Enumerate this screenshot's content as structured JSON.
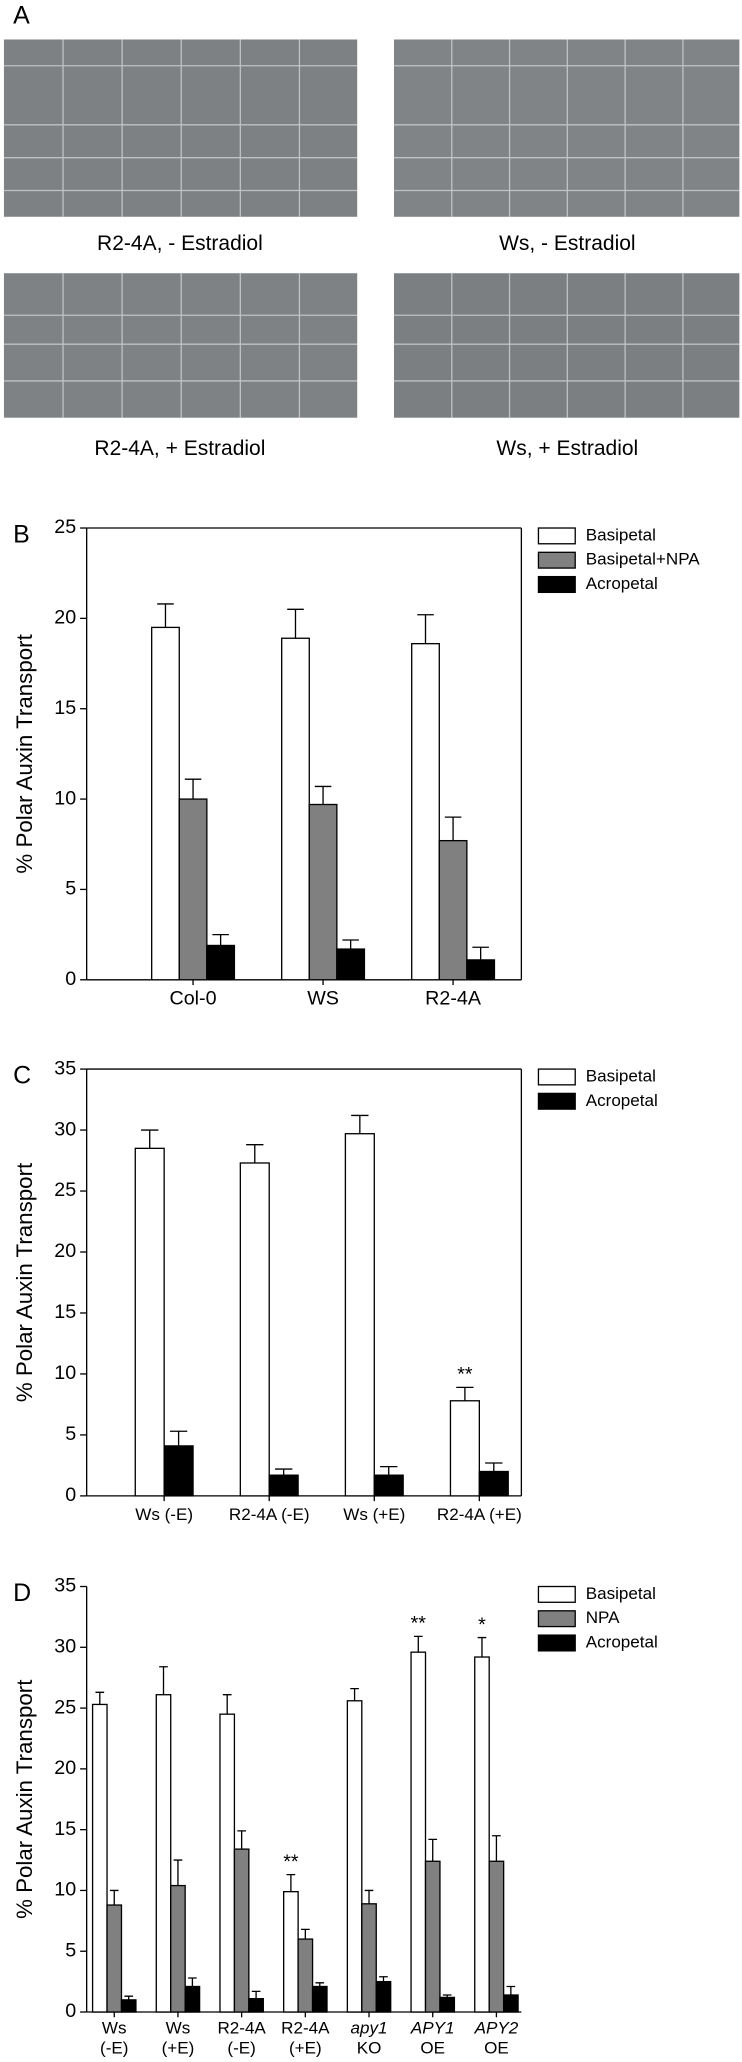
{
  "panel_a": {
    "label": "A",
    "captions": [
      "R2-4A, - Estradiol",
      "Ws, - Estradiol",
      "R2-4A, + Estradiol",
      "Ws, + Estradiol"
    ]
  },
  "chart_data": [
    {
      "type": "bar",
      "label": "B",
      "ylabel": "% Polar Auxin Transport",
      "categories": [
        "Col-0",
        "WS",
        "R2-4A"
      ],
      "series": [
        {
          "name": "Basipetal",
          "color": "#ffffff",
          "values": [
            19.5,
            18.9,
            18.6
          ],
          "errors": [
            1.3,
            1.6,
            1.6
          ]
        },
        {
          "name": "Basipetal+NPA",
          "color": "#808080",
          "values": [
            10.0,
            9.7,
            7.7
          ],
          "errors": [
            1.1,
            1.0,
            1.3
          ]
        },
        {
          "name": "Acropetal",
          "color": "#000000",
          "values": [
            1.9,
            1.7,
            1.1
          ],
          "errors": [
            0.6,
            0.5,
            0.7
          ]
        }
      ],
      "ylim": [
        0,
        25
      ],
      "yticks": [
        0,
        5,
        10,
        15,
        20,
        25
      ],
      "frame": "box",
      "legend": "right"
    },
    {
      "type": "bar",
      "label": "C",
      "ylabel": "% Polar Auxin Transport",
      "categories": [
        "Ws (-E)",
        "R2-4A (-E)",
        "Ws (+E)",
        "R2-4A (+E)"
      ],
      "series": [
        {
          "name": "Basipetal",
          "color": "#ffffff",
          "values": [
            28.5,
            27.3,
            29.7,
            7.8
          ],
          "errors": [
            1.5,
            1.5,
            1.5,
            1.1
          ]
        },
        {
          "name": "Acropetal",
          "color": "#000000",
          "values": [
            4.1,
            1.7,
            1.7,
            2.0
          ],
          "errors": [
            1.2,
            0.5,
            0.7,
            0.7
          ]
        }
      ],
      "annotations": [
        {
          "text": "**",
          "category": 3,
          "series": 0
        }
      ],
      "ylim": [
        0,
        35
      ],
      "yticks": [
        0,
        5,
        10,
        15,
        20,
        25,
        30,
        35
      ],
      "frame": "box",
      "legend": "right"
    },
    {
      "type": "bar",
      "label": "D",
      "ylabel": "% Polar Auxin Transport",
      "categories": [
        [
          "Ws",
          "(-E)"
        ],
        [
          "Ws",
          "(+E)"
        ],
        [
          "R2-4A",
          "(-E)"
        ],
        [
          "R2-4A",
          "(+E)"
        ],
        [
          "apy1",
          "KO"
        ],
        [
          "APY1",
          "OE"
        ],
        [
          "APY2",
          "OE"
        ]
      ],
      "italic_categories": [
        4,
        5,
        6
      ],
      "series": [
        {
          "name": "Basipetal",
          "color": "#ffffff",
          "values": [
            25.3,
            26.1,
            24.5,
            9.9,
            25.6,
            29.6,
            29.2
          ],
          "errors": [
            1.0,
            2.3,
            1.6,
            1.4,
            1.0,
            1.3,
            1.6
          ]
        },
        {
          "name": "NPA",
          "color": "#808080",
          "values": [
            8.8,
            10.4,
            13.4,
            6.0,
            8.9,
            12.4,
            12.4
          ],
          "errors": [
            1.2,
            2.1,
            1.5,
            0.8,
            1.1,
            1.8,
            2.1
          ]
        },
        {
          "name": "Acropetal",
          "color": "#000000",
          "values": [
            1.0,
            2.1,
            1.1,
            2.1,
            2.5,
            1.2,
            1.4
          ],
          "errors": [
            0.3,
            0.7,
            0.6,
            0.3,
            0.4,
            0.2,
            0.7
          ]
        }
      ],
      "annotations": [
        {
          "text": "**",
          "category": 3,
          "series": 0
        },
        {
          "text": "**",
          "category": 5,
          "series": 0
        },
        {
          "text": "*",
          "category": 6,
          "series": 0
        }
      ],
      "ylim": [
        0,
        35
      ],
      "yticks": [
        0,
        5,
        10,
        15,
        20,
        25,
        30,
        35
      ],
      "frame": "axes",
      "legend": "right"
    }
  ]
}
